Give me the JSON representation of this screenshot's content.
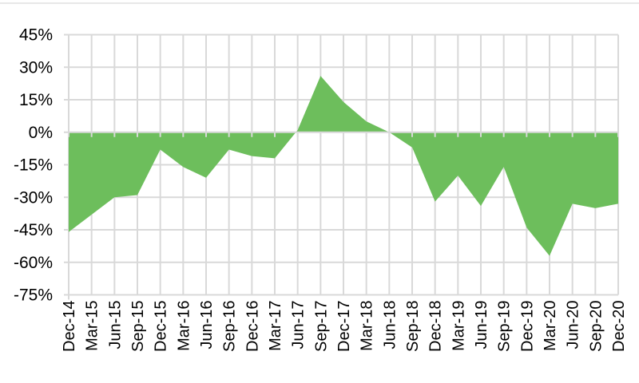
{
  "window": {
    "top_border_color": "#d9d9d9"
  },
  "chart_data": {
    "type": "area",
    "title": "",
    "categories": [
      "Dec-14",
      "Mar-15",
      "Jun-15",
      "Sep-15",
      "Dec-15",
      "Mar-16",
      "Jun-16",
      "Sep-16",
      "Dec-16",
      "Mar-17",
      "Jun-17",
      "Sep-17",
      "Dec-17",
      "Mar-18",
      "Jun-18",
      "Sep-18",
      "Dec-18",
      "Mar-19",
      "Jun-19",
      "Sep-19",
      "Dec-19",
      "Mar-20",
      "Jun-20",
      "Sep-20",
      "Dec-20"
    ],
    "values": [
      -46,
      -38,
      -30,
      -29,
      -8,
      -16,
      -21,
      -8,
      -11,
      -12,
      1,
      26,
      14,
      5,
      0,
      -7,
      -32,
      -20,
      -34,
      -16,
      -44,
      -57,
      -33,
      -35,
      -33
    ],
    "values_unit": "%",
    "xlabel": "",
    "ylabel": "",
    "ylim": [
      -75,
      45
    ],
    "ytick_step": 15,
    "ytick_labels": [
      "45%",
      "30%",
      "15%",
      "0%",
      "-15%",
      "-30%",
      "-45%",
      "-60%",
      "-75%"
    ],
    "grid": "on",
    "legend": "none",
    "x_label_rotation": -90,
    "colors": {
      "area_fill": "#6dbe5c",
      "gridline": "#d9d9d9",
      "axis_line": "#d9d9d9",
      "tick": "#d9d9d9",
      "label_text": "#000000",
      "background": "#ffffff"
    }
  }
}
